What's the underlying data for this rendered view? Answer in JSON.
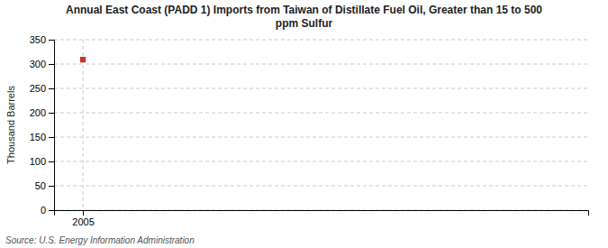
{
  "chart_data": {
    "type": "scatter",
    "title": "Annual East Coast (PADD 1) Imports from Taiwan of Distillate Fuel Oil, Greater than 15 to 500\nppm Sulfur",
    "ylabel": "Thousand Barrels",
    "source": "Source: U.S. Energy Information Administration",
    "x": [
      2005
    ],
    "values": [
      309
    ],
    "color": "#c0392b",
    "marker": "square",
    "xlim": [
      2004.4,
      2015.5
    ],
    "xticks": [
      2005
    ],
    "ylim": [
      0,
      350
    ],
    "yticks": [
      0,
      50,
      100,
      150,
      200,
      250,
      300,
      350
    ],
    "grid": true
  }
}
